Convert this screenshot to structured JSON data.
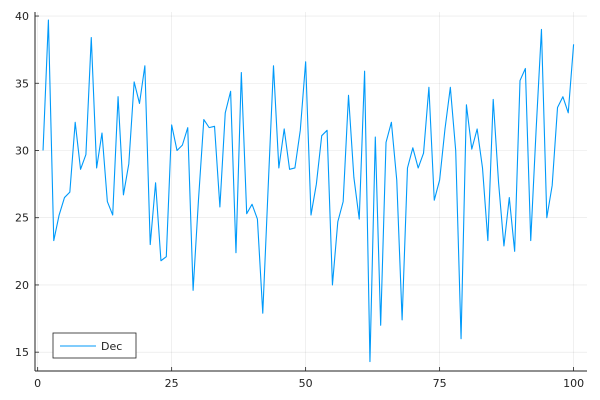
{
  "chart_data": {
    "type": "line",
    "title": "",
    "xlabel": "",
    "ylabel": "",
    "xlim": [
      -0.5,
      102.5
    ],
    "ylim": [
      13.6,
      40.3
    ],
    "xticks": [
      0,
      25,
      50,
      75,
      100
    ],
    "xtick_labels": [
      "0",
      "25",
      "50",
      "75",
      "100"
    ],
    "yticks": [
      15,
      20,
      25,
      30,
      35,
      40
    ],
    "ytick_labels": [
      "15",
      "20",
      "25",
      "30",
      "35",
      "40"
    ],
    "grid": true,
    "legend_position": "bottom-left",
    "line_color": "#009AFA",
    "series": [
      {
        "name": "Dec",
        "x": [
          1,
          2,
          3,
          4,
          5,
          6,
          7,
          8,
          9,
          10,
          11,
          12,
          13,
          14,
          15,
          16,
          17,
          18,
          19,
          20,
          21,
          22,
          23,
          24,
          25,
          26,
          27,
          28,
          29,
          30,
          31,
          32,
          33,
          34,
          35,
          36,
          37,
          38,
          39,
          40,
          41,
          42,
          43,
          44,
          45,
          46,
          47,
          48,
          49,
          50,
          51,
          52,
          53,
          54,
          55,
          56,
          57,
          58,
          59,
          60,
          61,
          62,
          63,
          64,
          65,
          66,
          67,
          68,
          69,
          70,
          71,
          72,
          73,
          74,
          75,
          76,
          77,
          78,
          79,
          80,
          81,
          82,
          83,
          84,
          85,
          86,
          87,
          88,
          89,
          90,
          91,
          92,
          93,
          94,
          95,
          96,
          97,
          98,
          99,
          100
        ],
        "values": [
          30.0,
          39.7,
          23.3,
          25.2,
          26.5,
          26.9,
          32.1,
          28.6,
          29.7,
          38.4,
          28.7,
          31.3,
          26.2,
          25.2,
          34.0,
          26.7,
          29.0,
          35.1,
          33.5,
          36.3,
          23.0,
          27.6,
          21.8,
          22.1,
          31.9,
          30.0,
          30.4,
          31.7,
          19.6,
          26.3,
          32.3,
          31.7,
          31.8,
          25.8,
          32.8,
          34.4,
          22.4,
          35.8,
          25.3,
          26.0,
          24.9,
          17.9,
          27.2,
          36.3,
          28.7,
          31.6,
          28.6,
          28.7,
          31.5,
          36.6,
          25.2,
          27.5,
          31.1,
          31.5,
          20.0,
          24.7,
          26.2,
          34.1,
          28.0,
          24.9,
          35.9,
          14.3,
          31.0,
          17.0,
          30.6,
          32.1,
          27.8,
          17.4,
          28.7,
          30.2,
          28.7,
          29.8,
          34.7,
          26.3,
          27.8,
          31.6,
          34.7,
          30.0,
          16.0,
          33.4,
          30.1,
          31.6,
          28.7,
          23.3,
          33.8,
          27.6,
          22.9,
          26.5,
          22.5,
          35.2,
          36.1,
          23.3,
          31.5,
          39.0,
          25.0,
          27.4,
          33.2,
          34.0,
          32.8,
          37.9
        ]
      }
    ]
  }
}
